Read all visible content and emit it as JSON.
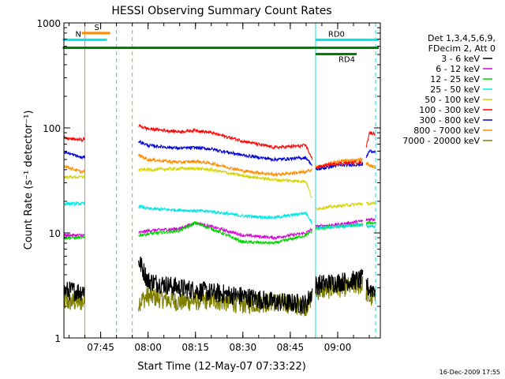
{
  "chart_data": {
    "type": "line",
    "title": "HESSI Observing Summary Count Rates",
    "xlabel": "Start Time (12-May-07 07:33:22)",
    "ylabel": "Count Rate (s⁻¹ detector⁻¹)",
    "yscale": "log",
    "ylim": [
      1,
      1000
    ],
    "xlim": [
      "07:33:22",
      "09:13:30"
    ],
    "x_ticks": [
      "07:45",
      "08:00",
      "08:15",
      "08:30",
      "08:45",
      "09:00"
    ],
    "y_ticks": [
      "1",
      "10",
      "100",
      "1000"
    ],
    "legend_header": [
      "Det 1,3,4,5,6,9,",
      "FDecim 2, Att 0"
    ],
    "legend_position": "right",
    "gaps": [
      [
        "07:40",
        "07:57"
      ],
      [
        "08:52",
        "08:53"
      ],
      [
        "09:08",
        "09:09"
      ]
    ],
    "series": [
      {
        "name": "3 - 6 keV",
        "color": "#000000",
        "x": [
          "07:33",
          "07:39",
          "07:57",
          "08:00",
          "08:10",
          "08:20",
          "08:30",
          "08:40",
          "08:50",
          "08:53",
          "09:00",
          "09:08",
          "09:10",
          "09:12"
        ],
        "values": [
          2.8,
          2.8,
          5.5,
          3.5,
          3.0,
          2.7,
          2.5,
          2.2,
          2.1,
          3.2,
          3.4,
          3.6,
          2.9,
          3.0
        ]
      },
      {
        "name": "6 - 12 keV",
        "color": "#d400d4",
        "x": [
          "07:33",
          "07:39",
          "07:57",
          "08:00",
          "08:10",
          "08:15",
          "08:20",
          "08:30",
          "08:40",
          "08:50",
          "08:53",
          "09:00",
          "09:08",
          "09:10",
          "09:12"
        ],
        "values": [
          9.5,
          9.5,
          10.0,
          10.5,
          11.0,
          12.5,
          11.5,
          9.5,
          9.0,
          10.0,
          11.5,
          12.0,
          13.0,
          13.5,
          13.5
        ]
      },
      {
        "name": "12 - 25 keV",
        "color": "#00d400",
        "x": [
          "07:33",
          "07:39",
          "07:57",
          "08:00",
          "08:10",
          "08:15",
          "08:20",
          "08:30",
          "08:40",
          "08:50",
          "08:53",
          "09:00",
          "09:08",
          "09:10",
          "09:12"
        ],
        "values": [
          9.0,
          9.0,
          9.5,
          9.8,
          10.5,
          12.5,
          11.0,
          8.2,
          8.0,
          9.5,
          11.0,
          11.5,
          12.0,
          12.5,
          12.5
        ]
      },
      {
        "name": "25 - 50 keV",
        "color": "#00e5e5",
        "x": [
          "07:33",
          "07:39",
          "07:57",
          "08:00",
          "08:10",
          "08:20",
          "08:30",
          "08:40",
          "08:50",
          "08:53",
          "09:00",
          "09:08",
          "09:10",
          "09:12"
        ],
        "values": [
          19,
          19,
          18,
          17,
          16.5,
          16,
          14.5,
          14,
          15.5,
          11,
          11.5,
          12,
          11.5,
          11.5
        ]
      },
      {
        "name": "50 - 100 keV",
        "color": "#d4d400",
        "x": [
          "07:33",
          "07:39",
          "07:57",
          "08:00",
          "08:10",
          "08:15",
          "08:20",
          "08:30",
          "08:40",
          "08:50",
          "08:53",
          "09:00",
          "09:08",
          "09:10",
          "09:12"
        ],
        "values": [
          34,
          34,
          40,
          40,
          41,
          41,
          40,
          35,
          32,
          31,
          17,
          18,
          19,
          19,
          19
        ]
      },
      {
        "name": "100 - 300 keV",
        "color": "#ff0000",
        "x": [
          "07:33",
          "07:39",
          "07:57",
          "08:00",
          "08:10",
          "08:15",
          "08:20",
          "08:30",
          "08:40",
          "08:50",
          "08:53",
          "09:00",
          "09:08",
          "09:10",
          "09:12"
        ],
        "values": [
          80,
          77,
          105,
          98,
          92,
          95,
          90,
          75,
          65,
          68,
          42,
          46,
          47,
          90,
          88
        ]
      },
      {
        "name": "300 - 800 keV",
        "color": "#0000d4",
        "x": [
          "07:33",
          "07:39",
          "07:57",
          "08:00",
          "08:10",
          "08:15",
          "08:20",
          "08:30",
          "08:40",
          "08:50",
          "08:53",
          "09:00",
          "09:08",
          "09:10",
          "09:12"
        ],
        "values": [
          60,
          52,
          75,
          68,
          64,
          65,
          63,
          55,
          50,
          52,
          40,
          44,
          45,
          60,
          60
        ]
      },
      {
        "name": "800 - 7000 keV",
        "color": "#ff8c00",
        "x": [
          "07:33",
          "07:39",
          "07:57",
          "08:00",
          "08:10",
          "08:15",
          "08:20",
          "08:30",
          "08:40",
          "08:50",
          "08:53",
          "09:00",
          "09:08",
          "09:10",
          "09:12"
        ],
        "values": [
          44,
          38,
          55,
          50,
          47,
          48,
          46,
          39,
          36,
          38,
          42,
          48,
          50,
          44,
          42
        ]
      },
      {
        "name": "7000 - 20000 keV",
        "color": "#808000",
        "x": [
          "07:33",
          "07:39",
          "07:57",
          "08:00",
          "08:10",
          "08:20",
          "08:30",
          "08:40",
          "08:50",
          "08:53",
          "09:00",
          "09:08",
          "09:10",
          "09:12"
        ],
        "values": [
          2.2,
          2.2,
          2.2,
          2.5,
          2.2,
          2.3,
          2.1,
          2.2,
          2.0,
          2.8,
          3.0,
          3.2,
          2.4,
          2.4
        ]
      }
    ],
    "flag_bars": [
      {
        "label": "S",
        "color": "#ff8c00",
        "x_start": "07:39",
        "x_end": "07:48",
        "y": 800
      },
      {
        "label": "N",
        "color": "#00e5e5",
        "x_start": "07:33",
        "x_end": "07:47",
        "y": 690
      },
      {
        "label": "",
        "color": "#008000",
        "x_start": "07:33",
        "x_end": "09:13",
        "y": 580
      },
      {
        "label": "RD0",
        "color": "#00e5e5",
        "x_start": "08:53",
        "x_end": "09:13",
        "y": 690
      },
      {
        "label": "RD4",
        "color": "#008000",
        "x_start": "08:53",
        "x_end": "09:06",
        "y": 505
      }
    ],
    "vertical_markers": [
      {
        "x": "07:33",
        "color": "#00e5e5",
        "style": "solid"
      },
      {
        "x": "07:40",
        "color": "#ff8c00",
        "style": "solid"
      },
      {
        "x": "07:50",
        "color": "#00e5e5",
        "style": "dashed"
      },
      {
        "x": "07:55",
        "color": "#ff8c00",
        "style": "dashed"
      },
      {
        "x": "08:53",
        "color": "#00e5e5",
        "style": "solid"
      },
      {
        "x": "09:12",
        "color": "#00e5e5",
        "style": "dashed"
      }
    ]
  },
  "footer": {
    "stamp": "16-Dec-2009 17:55"
  }
}
